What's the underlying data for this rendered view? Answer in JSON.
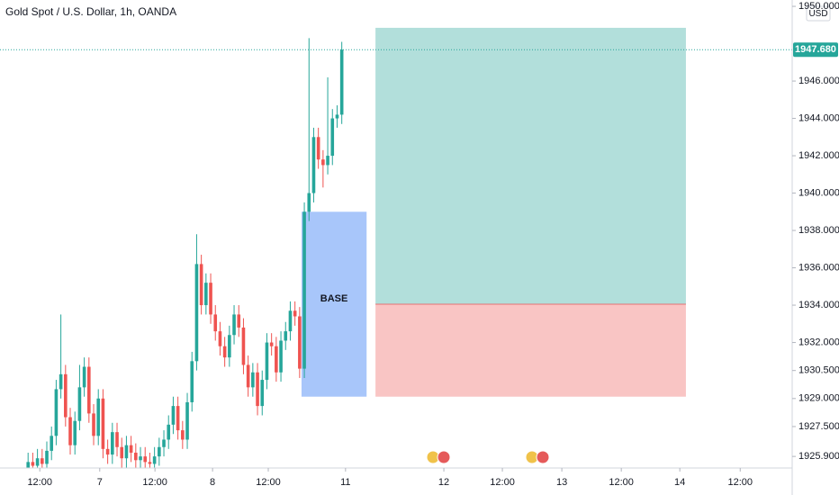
{
  "chart_data": {
    "type": "candlestick",
    "title": "Gold Spot / U.S. Dollar, 1h, OANDA",
    "currency": "USD",
    "x": [
      6,
      7,
      8,
      9,
      10,
      11,
      12,
      13,
      14,
      15,
      16,
      17,
      18,
      19,
      20,
      21,
      22,
      23,
      24,
      25,
      26,
      27,
      28,
      29,
      30,
      31,
      32,
      33,
      34,
      35,
      36,
      37,
      38,
      39,
      40,
      41,
      42,
      43,
      44,
      45,
      46,
      47,
      48,
      49,
      50,
      51,
      52,
      53,
      54,
      55,
      56,
      57,
      58,
      59,
      60,
      61,
      62,
      63,
      64,
      65,
      66,
      67,
      68,
      69,
      70,
      71,
      72,
      73
    ],
    "open": [
      1925.3,
      1925.6,
      1925.4,
      1925.8,
      1925.5,
      1926.2,
      1927.0,
      1929.5,
      1930.3,
      1928.0,
      1926.5,
      1927.8,
      1929.6,
      1930.7,
      1928.2,
      1927.0,
      1929.0,
      1926.3,
      1926.0,
      1927.2,
      1926.4,
      1925.8,
      1926.5,
      1926.1,
      1925.7,
      1925.9,
      1925.6,
      1925.5,
      1925.9,
      1926.4,
      1926.8,
      1927.6,
      1928.6,
      1927.3,
      1926.8,
      1928.8,
      1931.0,
      1936.2,
      1934.0,
      1935.2,
      1933.5,
      1932.6,
      1931.8,
      1931.2,
      1932.4,
      1933.5,
      1932.8,
      1930.8,
      1929.6,
      1930.4,
      1928.6,
      1930.0,
      1932.0,
      1931.8,
      1930.4,
      1932.1,
      1932.6,
      1933.7,
      1933.4,
      1930.6,
      1939.0,
      1940.0,
      1943.0,
      1941.8,
      1941.5,
      1942.0,
      1944.0,
      1944.2
    ],
    "high": [
      1926.1,
      1926.1,
      1926.3,
      1926.3,
      1926.7,
      1927.5,
      1930.0,
      1933.5,
      1930.8,
      1928.5,
      1928.3,
      1930.8,
      1931.2,
      1931.2,
      1928.7,
      1929.5,
      1929.5,
      1926.8,
      1927.7,
      1927.7,
      1926.9,
      1927.0,
      1927.0,
      1926.6,
      1926.4,
      1926.4,
      1926.1,
      1926.4,
      1926.9,
      1927.3,
      1928.1,
      1929.1,
      1929.1,
      1927.8,
      1929.3,
      1931.5,
      1937.8,
      1936.7,
      1935.7,
      1935.7,
      1934.0,
      1933.1,
      1932.3,
      1932.9,
      1934.0,
      1934.0,
      1933.3,
      1931.3,
      1930.9,
      1930.9,
      1930.5,
      1932.5,
      1932.5,
      1932.3,
      1932.6,
      1933.1,
      1934.2,
      1934.2,
      1933.9,
      1939.5,
      1948.3,
      1943.5,
      1943.5,
      1942.3,
      1946.2,
      1944.5,
      1944.7,
      1948.1
    ],
    "low": [
      1924.8,
      1924.9,
      1924.9,
      1925.0,
      1925.0,
      1925.7,
      1926.5,
      1929.0,
      1927.5,
      1926.0,
      1926.0,
      1927.3,
      1929.1,
      1927.7,
      1926.5,
      1926.5,
      1925.8,
      1925.5,
      1925.5,
      1925.9,
      1925.3,
      1925.3,
      1925.6,
      1925.2,
      1925.2,
      1925.1,
      1925.0,
      1925.0,
      1925.4,
      1925.9,
      1926.3,
      1927.1,
      1926.8,
      1926.3,
      1926.3,
      1928.3,
      1930.5,
      1933.5,
      1933.5,
      1933.0,
      1932.1,
      1931.3,
      1930.7,
      1930.7,
      1931.9,
      1932.3,
      1930.3,
      1929.1,
      1929.1,
      1928.1,
      1928.1,
      1929.5,
      1931.3,
      1929.9,
      1929.9,
      1931.6,
      1932.1,
      1932.9,
      1930.1,
      1930.1,
      1938.5,
      1939.5,
      1941.3,
      1940.3,
      1941.0,
      1941.5,
      1943.5,
      1943.7
    ],
    "close": [
      1925.6,
      1925.4,
      1925.8,
      1925.5,
      1926.2,
      1927.0,
      1929.5,
      1930.3,
      1928.0,
      1926.5,
      1927.8,
      1929.6,
      1930.7,
      1928.2,
      1927.0,
      1929.0,
      1926.3,
      1926.0,
      1927.2,
      1926.4,
      1925.8,
      1926.5,
      1926.1,
      1925.7,
      1925.9,
      1925.6,
      1925.5,
      1925.9,
      1926.4,
      1926.8,
      1927.6,
      1928.6,
      1927.3,
      1926.8,
      1928.8,
      1931.0,
      1936.2,
      1934.0,
      1935.2,
      1933.5,
      1932.6,
      1931.8,
      1931.2,
      1932.4,
      1933.5,
      1932.8,
      1930.8,
      1929.6,
      1930.4,
      1928.6,
      1930.0,
      1932.0,
      1931.8,
      1930.4,
      1932.1,
      1932.6,
      1933.7,
      1933.4,
      1930.6,
      1939.0,
      1940.0,
      1943.0,
      1941.8,
      1941.5,
      1942.0,
      1944.0,
      1944.2,
      1947.68
    ],
    "up_color": "#26a69a",
    "down_color": "#ef5350",
    "last_price": 1947.68,
    "last_price_label": "1947.680",
    "base_zone": {
      "label": "BASE",
      "x": [
        64.4,
        78.3
      ],
      "y": [
        1929.1,
        1939.0
      ],
      "color": "#a8c6fa"
    },
    "position": {
      "x": [
        80.2,
        146.5
      ],
      "target": 1948.85,
      "entry": 1934.05,
      "stop": 1929.1,
      "profit_color": "#b2dfdb",
      "loss_color": "#f9c5c4"
    },
    "xlim": [
      0,
      169.2
    ],
    "ylim": [
      1925.28,
      1950.34
    ],
    "xticks": [
      {
        "value": 8.5,
        "label": "12:00"
      },
      {
        "value": 21.3,
        "label": "7"
      },
      {
        "value": 33.1,
        "label": "12:00"
      },
      {
        "value": 45.4,
        "label": "8"
      },
      {
        "value": 57.3,
        "label": "12:00"
      },
      {
        "value": 73.8,
        "label": "11"
      },
      {
        "value": 94.8,
        "label": "12"
      },
      {
        "value": 107.3,
        "label": "12:00"
      },
      {
        "value": 120,
        "label": "13"
      },
      {
        "value": 132.7,
        "label": "12:00"
      },
      {
        "value": 145.2,
        "label": "14"
      },
      {
        "value": 158.1,
        "label": "12:00"
      }
    ],
    "yticks": [
      {
        "value": 1950,
        "label": "1950.000"
      },
      {
        "value": 1946,
        "label": "1946.000"
      },
      {
        "value": 1944,
        "label": "1944.000"
      },
      {
        "value": 1942,
        "label": "1942.000"
      },
      {
        "value": 1940,
        "label": "1940.000"
      },
      {
        "value": 1938,
        "label": "1938.000"
      },
      {
        "value": 1936,
        "label": "1936.000"
      },
      {
        "value": 1934,
        "label": "1934.000"
      },
      {
        "value": 1932,
        "label": "1932.000"
      },
      {
        "value": 1930.5,
        "label": "1930.500"
      },
      {
        "value": 1929,
        "label": "1929.000"
      },
      {
        "value": 1927.5,
        "label": "1927.500"
      },
      {
        "value": 1925.9,
        "label": "1925.900"
      }
    ]
  }
}
